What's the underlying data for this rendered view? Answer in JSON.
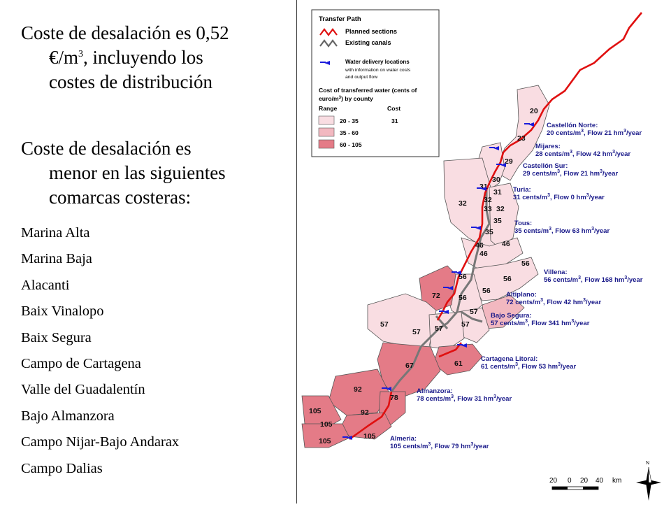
{
  "text": {
    "para1_lines": [
      "Coste de desalación es 0,52",
      "€/m",
      "3",
      ", incluyendo los",
      "costes de distribución"
    ],
    "para2_lines": [
      "Coste de desalación es",
      "menor en las siguientes",
      "comarcas costeras:"
    ],
    "comarcas": [
      "Marina Alta",
      "Marina Baja",
      "Alacanti",
      "Baix Vinalopo",
      "Baix Segura",
      "Campo de Cartagena",
      "Valle del Guadalentín",
      "Bajo Almanzora",
      "Campo Nijar-Bajo Andarax",
      "Campo Dalias"
    ]
  },
  "legend": {
    "title": "Transfer Path",
    "planned": "Planned sections",
    "existing": "Existing canals",
    "delivery1": "Water delivery locations",
    "delivery2": "with information on water costs",
    "delivery3": "and output flow",
    "cost1": "Cost of transferred water (cents of",
    "cost2": "euro/m",
    "cost2_sup": "3",
    "cost2_end": ") by county",
    "range_header": "Range",
    "cost_header": "Cost",
    "ranges": [
      "20 - 35",
      "35 - 60",
      "60 - 105"
    ],
    "sample_cost": "31"
  },
  "colors": {
    "light": "#f9dde2",
    "mid": "#f2b8c0",
    "dark": "#e47b87",
    "planned": "#e01010",
    "existing": "#777777",
    "arrow": "#1a1adb"
  },
  "locations": [
    {
      "name": "Castellón Norte:",
      "cents": "20",
      "flow": "21"
    },
    {
      "name": "Mijares:",
      "cents": "28",
      "flow": "42"
    },
    {
      "name": "Castellón Sur:",
      "cents": "29",
      "flow": "21"
    },
    {
      "name": "Turia:",
      "cents": "31",
      "flow": "0"
    },
    {
      "name": "Tous:",
      "cents": "35",
      "flow": "63"
    },
    {
      "name": "Villena:",
      "cents": "56",
      "flow": "168"
    },
    {
      "name": "Altiplano:",
      "cents": "72",
      "flow": "42"
    },
    {
      "name": "Bajo Segura:",
      "cents": "57",
      "flow": "341"
    },
    {
      "name": "Cartagena Litoral:",
      "cents": "61",
      "flow": "53"
    },
    {
      "name": "Almanzora:",
      "cents": "78",
      "flow": "31"
    },
    {
      "name": "Almeria:",
      "cents": "105",
      "flow": "79"
    }
  ],
  "cost_units": {
    "cents_unit": " cents/m",
    "flow_unit": ", Flow ",
    "flow_tail": " hm",
    "year": "/year",
    "sup": "3"
  },
  "county_costs": [
    "20",
    "23",
    "29",
    "30",
    "31",
    "31",
    "32",
    "32",
    "33",
    "32",
    "35",
    "35",
    "46",
    "46",
    "46",
    "56",
    "56",
    "56",
    "56",
    "72",
    "56",
    "57",
    "57",
    "57",
    "57",
    "57",
    "67",
    "61",
    "92",
    "78",
    "92",
    "105",
    "105",
    "105",
    "105"
  ],
  "scale": {
    "labels": [
      "20",
      "0",
      "20",
      "40",
      "km"
    ],
    "north": "N"
  }
}
